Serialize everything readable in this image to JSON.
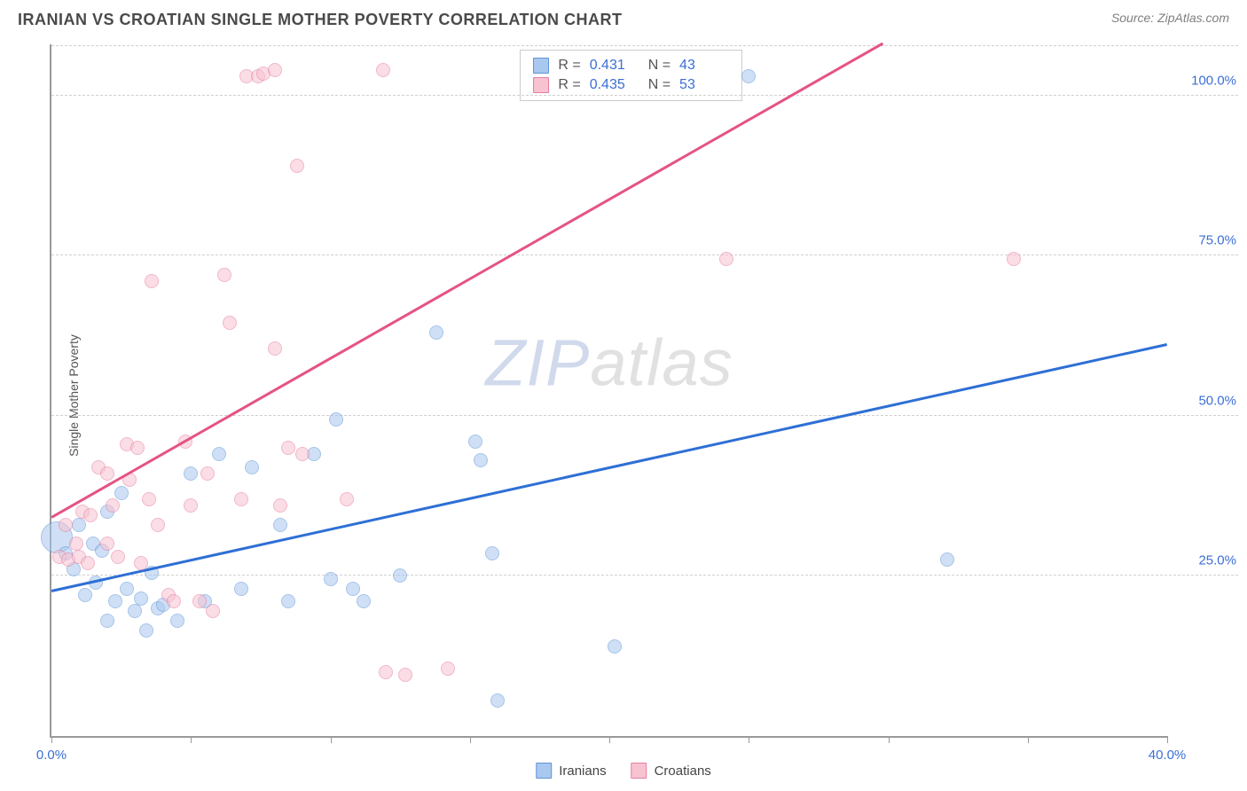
{
  "header": {
    "title": "IRANIAN VS CROATIAN SINGLE MOTHER POVERTY CORRELATION CHART",
    "source_prefix": "Source: ",
    "source": "ZipAtlas.com"
  },
  "watermark": {
    "part1": "ZIP",
    "part2": "atlas"
  },
  "chart": {
    "type": "scatter",
    "ylabel": "Single Mother Poverty",
    "xlim": [
      0,
      40
    ],
    "ylim": [
      0,
      108
    ],
    "xticks": [
      0,
      5,
      10,
      15,
      20,
      25,
      30,
      35,
      40
    ],
    "xtick_labels": {
      "0": "0.0%",
      "40": "40.0%"
    },
    "yticks": [
      25,
      50,
      75,
      100
    ],
    "ytick_labels": {
      "25": "25.0%",
      "50": "50.0%",
      "75": "75.0%",
      "100": "100.0%"
    },
    "grid_color": "#d0d0d0",
    "axis_color": "#999999",
    "tick_label_color": "#3b6fd4",
    "background_color": "#ffffff",
    "marker_radius": 8,
    "marker_opacity": 0.55,
    "marker_border_alpha": 0.9,
    "series": [
      {
        "name": "Iranians",
        "fill": "#a9c8ef",
        "stroke": "#5f93d8",
        "trend": {
          "x1": 0,
          "y1": 22.5,
          "x2": 40,
          "y2": 61,
          "color": "#2e6fd5",
          "width": 2.5
        },
        "stats": {
          "r_label": "R = ",
          "r": "0.431",
          "n_label": "N = ",
          "n": "43"
        },
        "points": [
          {
            "x": 0.2,
            "y": 31,
            "r": 18
          },
          {
            "x": 0.5,
            "y": 28.5
          },
          {
            "x": 0.8,
            "y": 26
          },
          {
            "x": 1.0,
            "y": 33
          },
          {
            "x": 1.2,
            "y": 22
          },
          {
            "x": 1.5,
            "y": 30
          },
          {
            "x": 1.6,
            "y": 24
          },
          {
            "x": 1.8,
            "y": 29
          },
          {
            "x": 2.0,
            "y": 18
          },
          {
            "x": 2.0,
            "y": 35
          },
          {
            "x": 2.3,
            "y": 21
          },
          {
            "x": 2.5,
            "y": 38
          },
          {
            "x": 2.7,
            "y": 23
          },
          {
            "x": 3.0,
            "y": 19.5
          },
          {
            "x": 3.2,
            "y": 21.5
          },
          {
            "x": 3.4,
            "y": 16.5
          },
          {
            "x": 3.6,
            "y": 25.5
          },
          {
            "x": 3.8,
            "y": 20
          },
          {
            "x": 4.0,
            "y": 20.5
          },
          {
            "x": 4.5,
            "y": 18
          },
          {
            "x": 5.0,
            "y": 41
          },
          {
            "x": 5.5,
            "y": 21
          },
          {
            "x": 6.0,
            "y": 44
          },
          {
            "x": 6.8,
            "y": 23
          },
          {
            "x": 7.2,
            "y": 42
          },
          {
            "x": 8.2,
            "y": 33
          },
          {
            "x": 8.5,
            "y": 21
          },
          {
            "x": 9.4,
            "y": 44
          },
          {
            "x": 10.0,
            "y": 24.5
          },
          {
            "x": 10.2,
            "y": 49.5
          },
          {
            "x": 10.8,
            "y": 23
          },
          {
            "x": 11.2,
            "y": 21
          },
          {
            "x": 12.5,
            "y": 25
          },
          {
            "x": 13.8,
            "y": 63
          },
          {
            "x": 15.2,
            "y": 46
          },
          {
            "x": 15.4,
            "y": 43
          },
          {
            "x": 15.8,
            "y": 28.5
          },
          {
            "x": 16.0,
            "y": 5.5
          },
          {
            "x": 20.2,
            "y": 14
          },
          {
            "x": 25.0,
            "y": 103
          },
          {
            "x": 32.1,
            "y": 27.5
          }
        ]
      },
      {
        "name": "Croatians",
        "fill": "#f7c3d1",
        "stroke": "#e87ca0",
        "trend": {
          "x1": 0,
          "y1": 34,
          "x2": 29.8,
          "y2": 108,
          "color": "#e55383",
          "width": 2.5
        },
        "stats": {
          "r_label": "R = ",
          "r": "0.435",
          "n_label": "N = ",
          "n": "53"
        },
        "points": [
          {
            "x": 0.3,
            "y": 28
          },
          {
            "x": 0.5,
            "y": 33
          },
          {
            "x": 0.6,
            "y": 27.5
          },
          {
            "x": 0.9,
            "y": 30
          },
          {
            "x": 1.0,
            "y": 28
          },
          {
            "x": 1.1,
            "y": 35
          },
          {
            "x": 1.3,
            "y": 27
          },
          {
            "x": 1.4,
            "y": 34.5
          },
          {
            "x": 1.7,
            "y": 42
          },
          {
            "x": 2.0,
            "y": 30
          },
          {
            "x": 2.0,
            "y": 41
          },
          {
            "x": 2.2,
            "y": 36
          },
          {
            "x": 2.4,
            "y": 28
          },
          {
            "x": 2.7,
            "y": 45.5
          },
          {
            "x": 2.8,
            "y": 40
          },
          {
            "x": 3.1,
            "y": 45
          },
          {
            "x": 3.2,
            "y": 27
          },
          {
            "x": 3.5,
            "y": 37
          },
          {
            "x": 3.6,
            "y": 71
          },
          {
            "x": 3.8,
            "y": 33
          },
          {
            "x": 4.2,
            "y": 22
          },
          {
            "x": 4.4,
            "y": 21
          },
          {
            "x": 4.8,
            "y": 46
          },
          {
            "x": 5.0,
            "y": 36
          },
          {
            "x": 5.3,
            "y": 21
          },
          {
            "x": 5.6,
            "y": 41
          },
          {
            "x": 5.8,
            "y": 19.5
          },
          {
            "x": 6.2,
            "y": 72
          },
          {
            "x": 6.4,
            "y": 64.5
          },
          {
            "x": 6.8,
            "y": 37
          },
          {
            "x": 7.0,
            "y": 103
          },
          {
            "x": 7.4,
            "y": 103
          },
          {
            "x": 7.6,
            "y": 103.5
          },
          {
            "x": 8.0,
            "y": 60.5
          },
          {
            "x": 8.0,
            "y": 104
          },
          {
            "x": 8.2,
            "y": 36
          },
          {
            "x": 8.5,
            "y": 45
          },
          {
            "x": 8.8,
            "y": 89
          },
          {
            "x": 9.0,
            "y": 44
          },
          {
            "x": 10.6,
            "y": 37
          },
          {
            "x": 11.9,
            "y": 104
          },
          {
            "x": 12.0,
            "y": 10
          },
          {
            "x": 12.7,
            "y": 9.5
          },
          {
            "x": 14.2,
            "y": 10.5
          },
          {
            "x": 24.2,
            "y": 74.5
          },
          {
            "x": 34.5,
            "y": 74.5
          }
        ]
      }
    ]
  },
  "legend": {
    "series1_label": "Iranians",
    "series2_label": "Croatians"
  }
}
